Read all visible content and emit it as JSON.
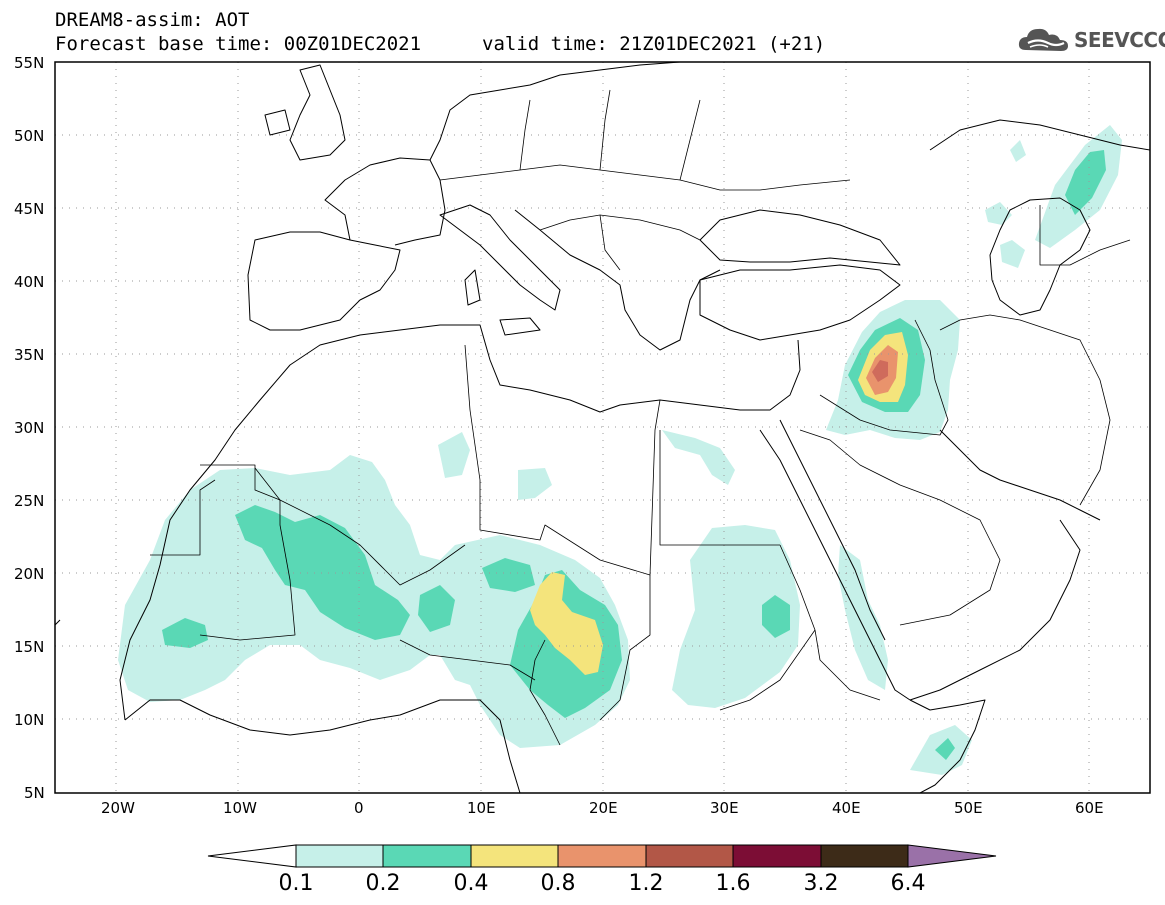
{
  "header": {
    "title": "DREAM8-assim: AOT",
    "base_time": "Forecast base time: 00Z01DEC2021",
    "valid_time": "valid time: 21Z01DEC2021 (+21)",
    "logo_text": "SEEVCCC"
  },
  "map": {
    "variable": "AOT",
    "lon_range": [
      -25,
      65
    ],
    "lat_range": [
      5,
      55
    ],
    "lon_ticks": [
      "20W",
      "10W",
      "0",
      "10E",
      "20E",
      "30E",
      "40E",
      "50E",
      "60E"
    ],
    "lat_ticks": [
      "55N",
      "50N",
      "45N",
      "40N",
      "35N",
      "30N",
      "25N",
      "20N",
      "15N",
      "10N",
      "5N"
    ],
    "gridlines": "dotted",
    "hotspots": [
      {
        "region": "Iraq / Syria",
        "max_class": "1.2"
      },
      {
        "region": "Chad",
        "max_class": "0.8"
      }
    ]
  },
  "colorbar": {
    "levels": [
      "0.1",
      "0.2",
      "0.4",
      "0.8",
      "1.2",
      "1.6",
      "3.2",
      "6.4"
    ],
    "colors": [
      "#ffffff",
      "#c6f0e9",
      "#5ad8b5",
      "#f4e47c",
      "#e9936c",
      "#b25747",
      "#7c0d35",
      "#3d2b18",
      "#9a71a8"
    ]
  }
}
